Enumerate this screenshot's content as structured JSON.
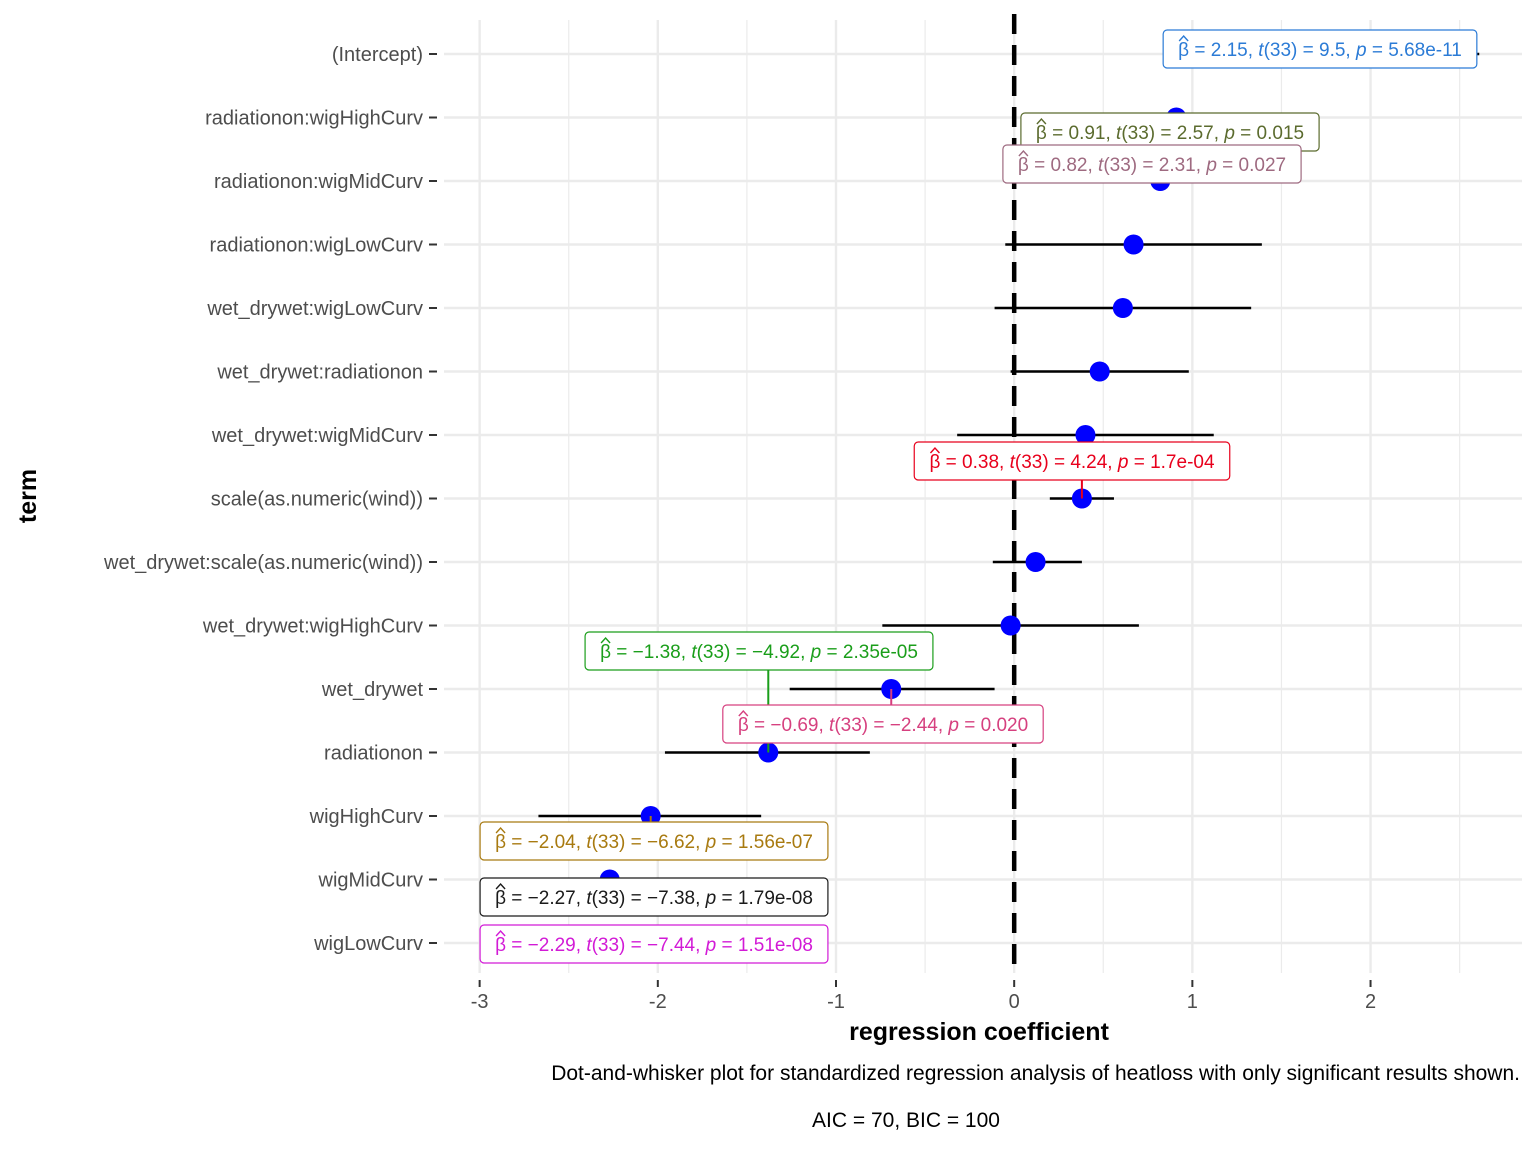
{
  "chart_data": {
    "type": "scatter",
    "subtype": "dot-and-whisker",
    "xlabel": "regression coefficient",
    "ylabel": "term",
    "xlim": [
      -3.2,
      2.85
    ],
    "x_ticks": [
      -3,
      -2,
      -1,
      0,
      1,
      2
    ],
    "reference_line_x": 0,
    "grid": true,
    "point_color": "#0000ff",
    "caption_lines": [
      "Dot-and-whisker plot for standardized regression analysis of heatloss with only significant results shown.",
      "AIC = 70, BIC = 100"
    ],
    "terms": [
      {
        "term": "(Intercept)",
        "estimate": 2.15,
        "conf_low": 1.69,
        "conf_high": 2.61
      },
      {
        "term": "radiationon:wigHighCurv",
        "estimate": 0.91,
        "conf_low": 0.19,
        "conf_high": 1.63
      },
      {
        "term": "radiationon:wigMidCurv",
        "estimate": 0.82,
        "conf_low": 0.1,
        "conf_high": 1.54
      },
      {
        "term": "radiationon:wigLowCurv",
        "estimate": 0.67,
        "conf_low": -0.05,
        "conf_high": 1.39
      },
      {
        "term": "wet_drywet:wigLowCurv",
        "estimate": 0.61,
        "conf_low": -0.11,
        "conf_high": 1.33
      },
      {
        "term": "wet_drywet:radiationon",
        "estimate": 0.48,
        "conf_low": -0.02,
        "conf_high": 0.98
      },
      {
        "term": "wet_drywet:wigMidCurv",
        "estimate": 0.4,
        "conf_low": -0.32,
        "conf_high": 1.12
      },
      {
        "term": "scale(as.numeric(wind))",
        "estimate": 0.38,
        "conf_low": 0.2,
        "conf_high": 0.56
      },
      {
        "term": "wet_drywet:scale(as.numeric(wind))",
        "estimate": 0.12,
        "conf_low": -0.12,
        "conf_high": 0.38
      },
      {
        "term": "wet_drywet:wigHighCurv",
        "estimate": -0.02,
        "conf_low": -0.74,
        "conf_high": 0.7
      },
      {
        "term": "wet_drywet",
        "estimate": -0.69,
        "conf_low": -1.26,
        "conf_high": -0.11
      },
      {
        "term": "radiationon",
        "estimate": -1.38,
        "conf_low": -1.96,
        "conf_high": -0.81
      },
      {
        "term": "wigHighCurv",
        "estimate": -2.04,
        "conf_low": -2.67,
        "conf_high": -1.42
      },
      {
        "term": "wigMidCurv",
        "estimate": -2.27,
        "conf_low": -2.9,
        "conf_high": -1.65
      },
      {
        "term": "wigLowCurv",
        "estimate": -2.29,
        "conf_low": -2.92,
        "conf_high": -1.67
      }
    ],
    "labels": [
      {
        "term": "(Intercept)",
        "beta": "2.15",
        "df": "33",
        "t": "9.5",
        "p": "5.68e-11",
        "color": "#2b7bd6"
      },
      {
        "term": "radiationon:wigHighCurv",
        "beta": "0.91",
        "df": "33",
        "t": "2.57",
        "p": "0.015",
        "color": "#5b6b2e"
      },
      {
        "term": "radiationon:wigMidCurv",
        "beta": "0.82",
        "df": "33",
        "t": "2.31",
        "p": "0.027",
        "color": "#9e6a80"
      },
      {
        "term": "scale(as.numeric(wind))",
        "beta": "0.38",
        "df": "33",
        "t": "4.24",
        "p": "1.7e-04",
        "color": "#e8001c"
      },
      {
        "term": "radiationon",
        "beta": "−1.38",
        "df": "33",
        "t": "−4.92",
        "p": "2.35e-05",
        "color": "#1a9e1a"
      },
      {
        "term": "wet_drywet",
        "beta": "−0.69",
        "df": "33",
        "t": "−2.44",
        "p": "0.020",
        "color": "#d6407f"
      },
      {
        "term": "wigHighCurv",
        "beta": "−2.04",
        "df": "33",
        "t": "−6.62",
        "p": "1.56e-07",
        "color": "#a87a10"
      },
      {
        "term": "wigMidCurv",
        "beta": "−2.27",
        "df": "33",
        "t": "−7.38",
        "p": "1.79e-08",
        "color": "#1a1a1a"
      },
      {
        "term": "wigLowCurv",
        "beta": "−2.29",
        "df": "33",
        "t": "−7.44",
        "p": "1.51e-08",
        "color": "#d21ad6"
      }
    ]
  }
}
